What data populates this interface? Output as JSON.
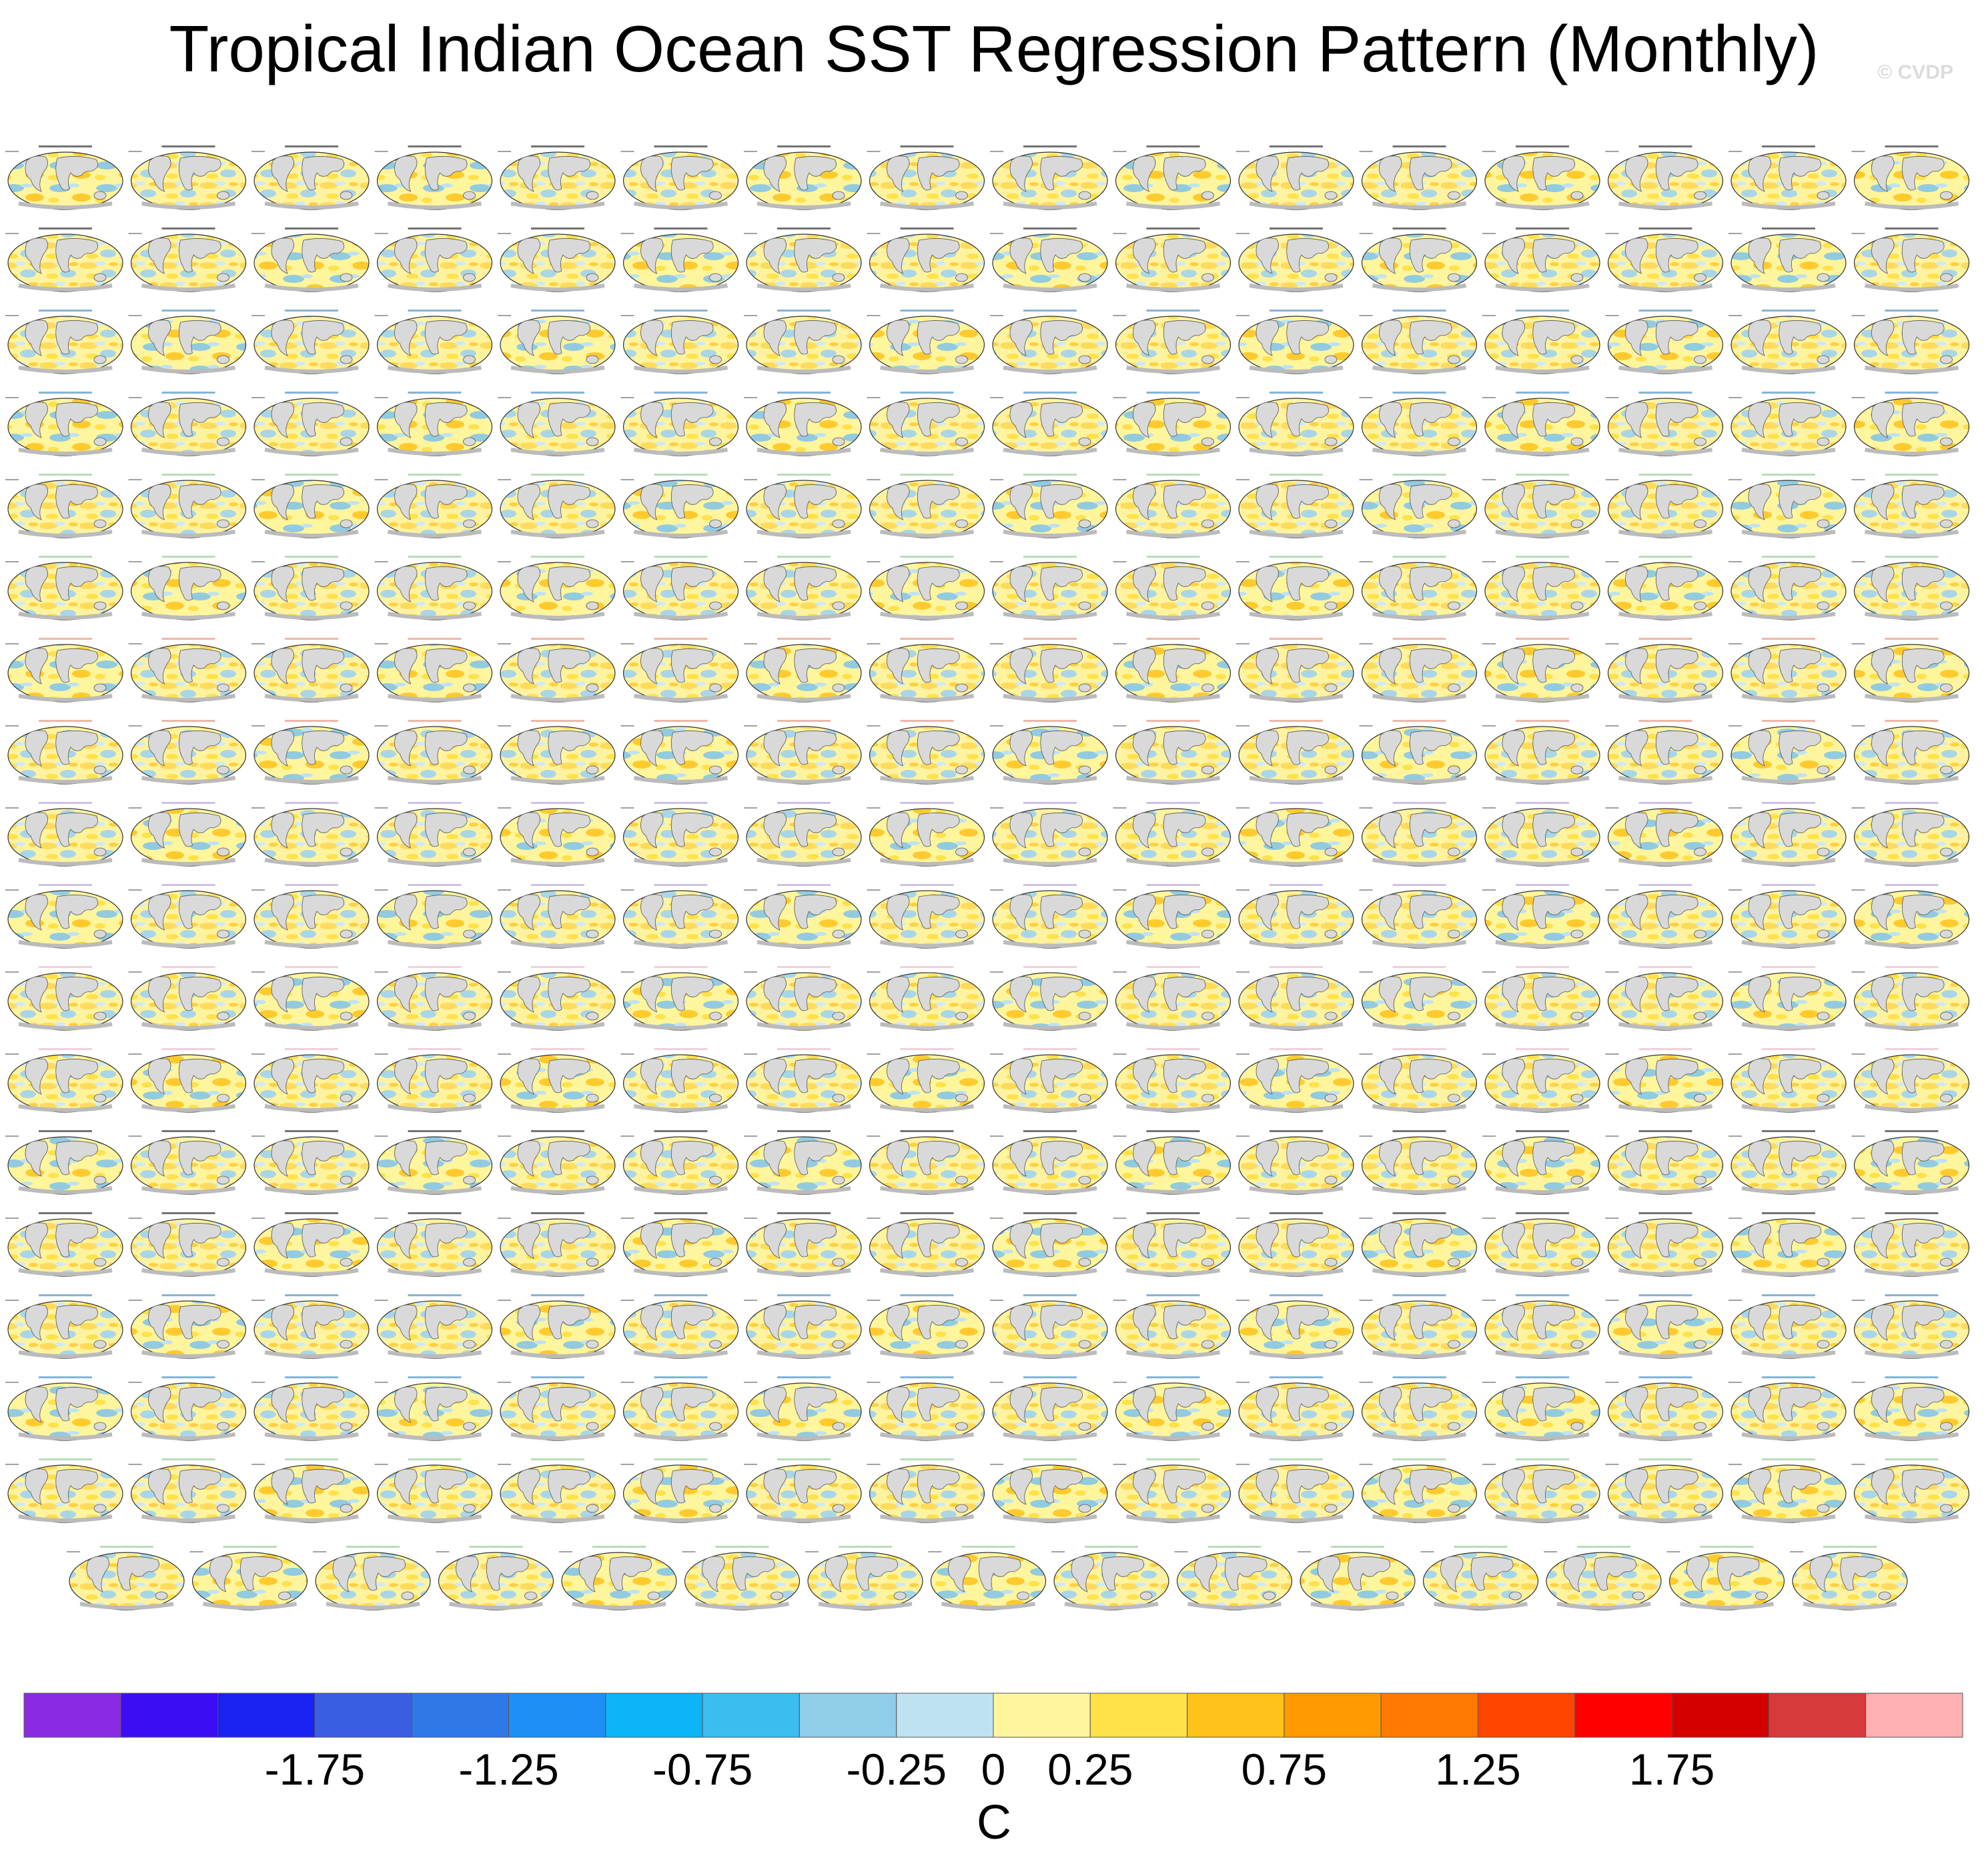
{
  "page": {
    "title": "Tropical Indian Ocean SST Regression Pattern (Monthly)",
    "watermark": "© CVDP"
  },
  "chart_data": {
    "type": "panel-grid",
    "description_rows": 17,
    "columns": 16,
    "last_row_panels": 15,
    "panel_label_colors": [
      "#000000",
      "#1f77b4",
      "#7fbf7f",
      "#e07a5f",
      "#a78bd4",
      "#e6a8c0"
    ],
    "colorbar": {
      "units": "C",
      "levels": [
        -2,
        -1.75,
        -1.5,
        -1.25,
        -1,
        -0.75,
        -0.5,
        -0.25,
        0,
        0.25,
        0.5,
        0.75,
        1,
        1.25,
        1.5,
        1.75,
        2
      ],
      "tick_labels": [
        "-1.75",
        "-1.25",
        "-0.75",
        "-0.25",
        "0",
        "0.25",
        "0.75",
        "1.25",
        "1.75"
      ],
      "colors": [
        "#8a2be2",
        "#3a0df2",
        "#1a22f0",
        "#3a5ee0",
        "#2f78e8",
        "#1f8ff5",
        "#0cb4f8",
        "#3bbdf0",
        "#8fcde9",
        "#bfe2f2",
        "#fff59d",
        "#ffe14a",
        "#ffc21a",
        "#ff9a00",
        "#ff7a00",
        "#ff4500",
        "#ff0000",
        "#d40000",
        "#d73a3a",
        "#ffb0b0"
      ]
    }
  }
}
